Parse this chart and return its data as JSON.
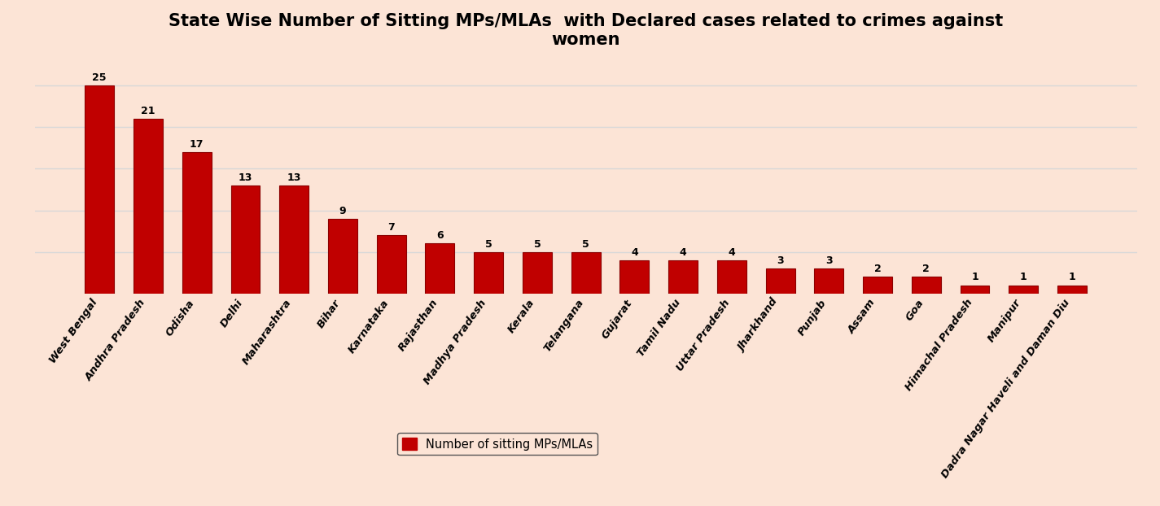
{
  "title": "State Wise Number of Sitting MPs/MLAs  with Declared cases related to crimes against\nwomen",
  "categories": [
    "West Bengal",
    "Andhra Pradesh",
    "Odisha",
    "Delhi",
    "Maharashtra",
    "Bihar",
    "Karnataka",
    "Rajasthan",
    "Madhya Pradesh",
    "Kerala",
    "Telangana",
    "Gujarat",
    "Tamil Nadu",
    "Uttar Pradesh",
    "Jharkhand",
    "Punjab",
    "Assam",
    "Goa",
    "Himachal Pradesh",
    "Manipur",
    "Dadra Nagar Haveli and Daman Diu"
  ],
  "values": [
    25,
    21,
    17,
    13,
    13,
    9,
    7,
    6,
    5,
    5,
    5,
    4,
    4,
    4,
    3,
    3,
    2,
    2,
    1,
    1,
    1
  ],
  "bar_color": "#c00000",
  "bar_edge_color": "#8b0000",
  "background_color": "#fce4d6",
  "title_fontsize": 15,
  "label_fontsize": 9.5,
  "value_fontsize": 9,
  "legend_label": "Number of sitting MPs/MLAs",
  "ylim": [
    0,
    28
  ],
  "grid_color": "#d8d8d8",
  "yticks": [
    5,
    10,
    15,
    20,
    25
  ]
}
